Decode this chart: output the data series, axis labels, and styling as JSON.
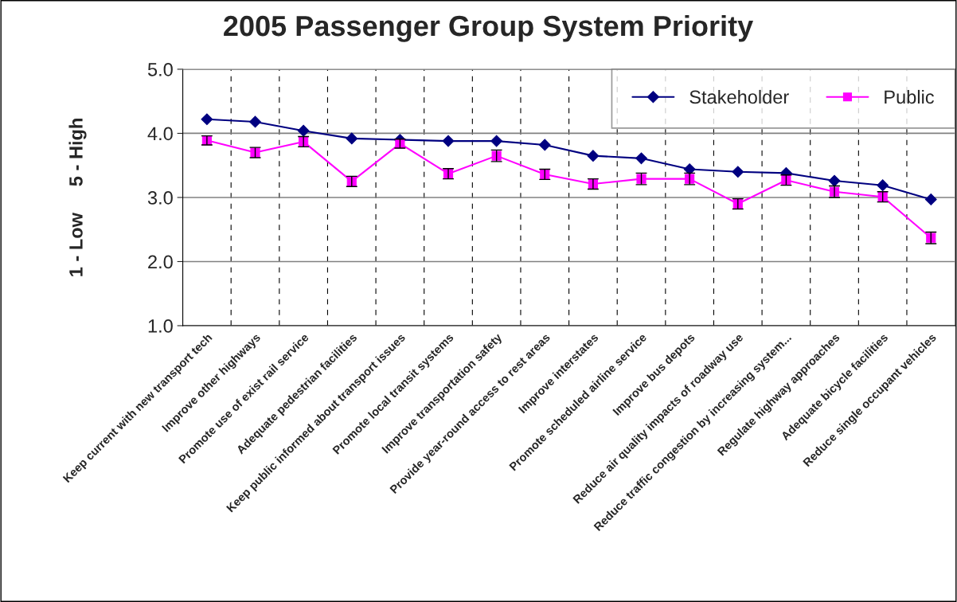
{
  "chart_data": {
    "type": "line",
    "title": "2005 Passenger Group System Priority",
    "ylabel": "1 - Low     5 - High",
    "categories": [
      "Keep current with new transport tech",
      "Improve other highways",
      "Promote use of exist rail service",
      "Adequate pedestrian facilities",
      "Keep public informed about transport issues",
      "Promote local transit systems",
      "Improve transportation safety",
      "Provide year-round access to rest areas",
      "Improve interstates",
      "Promote scheduled airline service",
      "Improve bus depots",
      "Reduce air quality impacts of roadway use",
      "Reduce traffic congestion by increasing system...",
      "Regulate highway approaches",
      "Adequate bicycle facilities",
      "Reduce single occupant vehicles"
    ],
    "series": [
      {
        "name": "Stakeholder",
        "color": "#000080",
        "marker": "diamond",
        "values": [
          4.22,
          4.18,
          4.04,
          3.92,
          3.9,
          3.88,
          3.88,
          3.82,
          3.65,
          3.61,
          3.44,
          3.4,
          3.38,
          3.26,
          3.19,
          2.97
        ]
      },
      {
        "name": "Public",
        "color": "#ff00ff",
        "marker": "square",
        "values": [
          3.89,
          3.7,
          3.87,
          3.25,
          3.84,
          3.37,
          3.65,
          3.36,
          3.21,
          3.29,
          3.29,
          2.9,
          3.27,
          3.09,
          3.01,
          2.37
        ],
        "errors": [
          0.07,
          0.08,
          0.08,
          0.08,
          0.07,
          0.08,
          0.09,
          0.08,
          0.08,
          0.09,
          0.09,
          0.08,
          0.08,
          0.09,
          0.08,
          0.09
        ]
      }
    ],
    "ylim": [
      1.0,
      5.0
    ],
    "yticks": [
      {
        "value": 1.0,
        "label": "1.0"
      },
      {
        "value": 2.0,
        "label": "2.0"
      },
      {
        "value": 3.0,
        "label": "3.0"
      },
      {
        "value": 4.0,
        "label": "4.0"
      },
      {
        "value": 5.0,
        "label": "5.0"
      }
    ],
    "grid": "y",
    "legend": "top right"
  }
}
